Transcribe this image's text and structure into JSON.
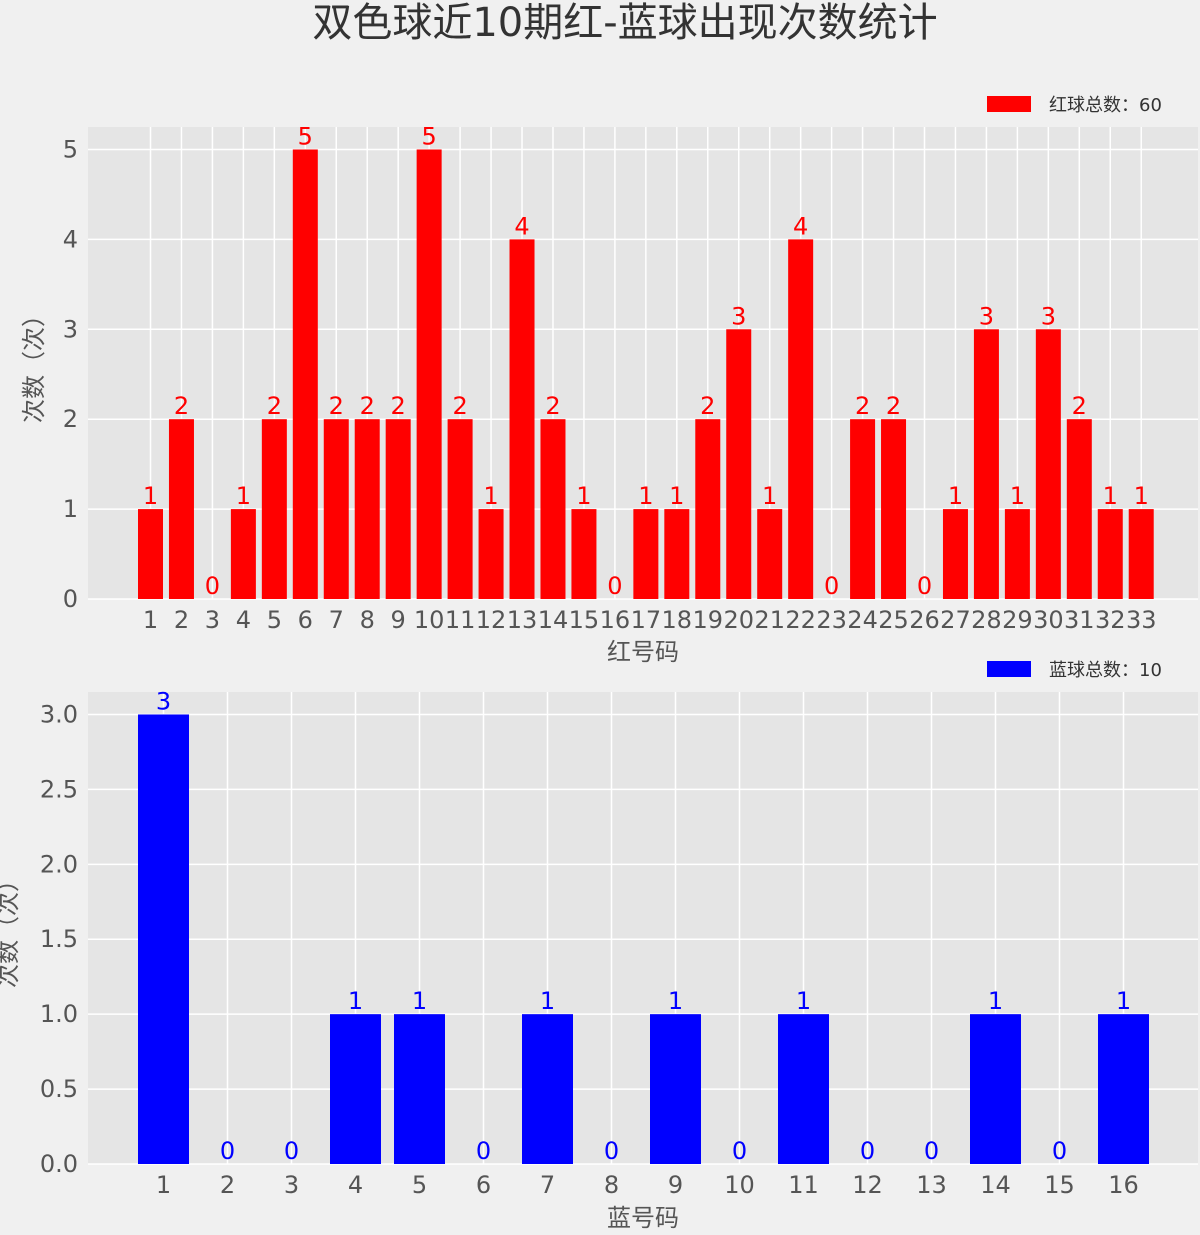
{
  "title": "双色球近10期红-蓝球出现次数统计",
  "colors": {
    "background": "#f0f0f0",
    "plot_background": "#e5e5e5",
    "grid": "#ffffff",
    "red": "#ff0000",
    "blue": "#0000ff",
    "axis_text": "#555555"
  },
  "chart_data": [
    {
      "type": "bar",
      "xlabel": "红号码",
      "ylabel": "次数（次）",
      "ylim": [
        0,
        5.25
      ],
      "yticks": [
        "0",
        "1",
        "2",
        "3",
        "4",
        "5"
      ],
      "grid": true,
      "legend": {
        "label": "红球总数：60",
        "placement": "top-right"
      },
      "categories": [
        "1",
        "2",
        "3",
        "4",
        "5",
        "6",
        "7",
        "8",
        "9",
        "10",
        "11",
        "12",
        "13",
        "14",
        "15",
        "16",
        "17",
        "18",
        "19",
        "20",
        "21",
        "22",
        "23",
        "24",
        "25",
        "26",
        "27",
        "28",
        "29",
        "30",
        "31",
        "32",
        "33"
      ],
      "values": [
        1,
        2,
        0,
        1,
        2,
        5,
        2,
        2,
        2,
        5,
        2,
        1,
        4,
        2,
        1,
        0,
        1,
        1,
        2,
        3,
        1,
        4,
        0,
        2,
        2,
        0,
        1,
        3,
        1,
        3,
        2,
        1,
        1
      ],
      "data_labels": [
        "1",
        "2",
        "0",
        "1",
        "2",
        "5",
        "2",
        "2",
        "2",
        "5",
        "2",
        "1",
        "4",
        "2",
        "1",
        "0",
        "1",
        "1",
        "2",
        "3",
        "1",
        "4",
        "0",
        "2",
        "2",
        "0",
        "1",
        "3",
        "1",
        "3",
        "2",
        "1",
        "1"
      ]
    },
    {
      "type": "bar",
      "xlabel": "蓝号码",
      "ylabel": "次数（次）",
      "ylim": [
        0,
        3.15
      ],
      "yticks": [
        "0.0",
        "0.5",
        "1.0",
        "1.5",
        "2.0",
        "2.5",
        "3.0"
      ],
      "grid": true,
      "legend": {
        "label": "蓝球总数：10",
        "placement": "top-right"
      },
      "categories": [
        "1",
        "2",
        "3",
        "4",
        "5",
        "6",
        "7",
        "8",
        "9",
        "10",
        "11",
        "12",
        "13",
        "14",
        "15",
        "16"
      ],
      "values": [
        3,
        0,
        0,
        1,
        1,
        0,
        1,
        0,
        1,
        0,
        1,
        0,
        0,
        1,
        0,
        1
      ],
      "data_labels": [
        "3",
        "0",
        "0",
        "1",
        "1",
        "0",
        "1",
        "0",
        "1",
        "0",
        "1",
        "0",
        "0",
        "1",
        "0",
        "1"
      ]
    }
  ]
}
